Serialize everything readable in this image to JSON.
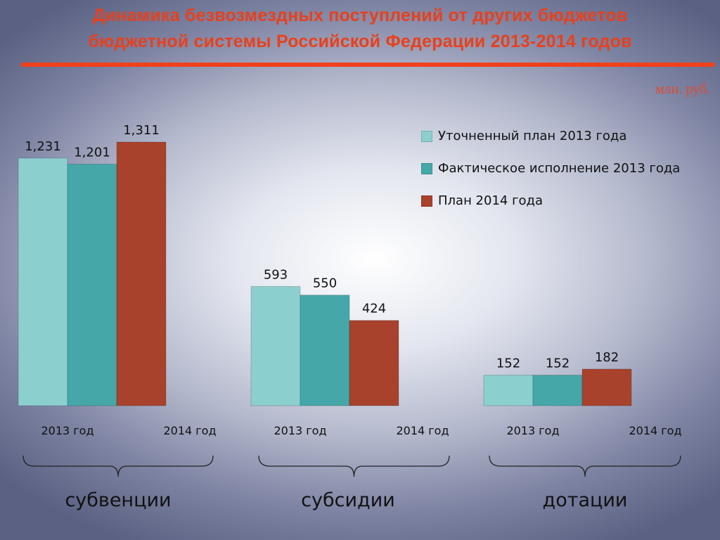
{
  "title": {
    "line1": "Динамика  безвозмездных поступлений от других бюджетов",
    "line2": "бюджетной системы Российской Федерации 2013-2014 годов"
  },
  "unit": "млн. руб.",
  "colors": {
    "title": "#e8401c",
    "series_plan_2013": "#8ccfcf",
    "series_actual_2013": "#46a7a9",
    "series_plan_2014": "#a9422c"
  },
  "legend": [
    {
      "label": "Уточненный план 2013 года"
    },
    {
      "label": "Фактическое исполнение 2013 года"
    },
    {
      "label": "План 2014 года"
    }
  ],
  "groups": [
    {
      "label": "субвенции"
    },
    {
      "label": "субсидии"
    },
    {
      "label": "дотации"
    }
  ],
  "chart_data": {
    "type": "bar",
    "title": "Динамика  безвозмездных поступлений от других бюджетов бюджетной системы Российской Федерации 2013-2014 годов",
    "unit": "млн. руб.",
    "categories": [
      "2013 год",
      "2014 год",
      "2013 год",
      "2014 год",
      "2013 год",
      "2014 год"
    ],
    "groups": [
      "субвенции",
      "субсидии",
      "дотации"
    ],
    "series": [
      {
        "name": "Уточненный план 2013 года",
        "values": [
          1231,
          null,
          593,
          null,
          152,
          null
        ],
        "labels": [
          "1,231",
          null,
          "593",
          null,
          "152",
          null
        ]
      },
      {
        "name": "Фактическое исполнение 2013 года",
        "values": [
          1201,
          null,
          550,
          null,
          152,
          null
        ],
        "labels": [
          "1,201",
          null,
          "550",
          null,
          "152",
          null
        ]
      },
      {
        "name": "План 2014 года",
        "values": [
          null,
          1311,
          null,
          424,
          null,
          182
        ],
        "labels": [
          null,
          "1,311",
          null,
          "424",
          null,
          "182"
        ]
      }
    ],
    "ylim": [
      0,
      1311
    ],
    "grid": false,
    "legend_position": "top-right"
  }
}
